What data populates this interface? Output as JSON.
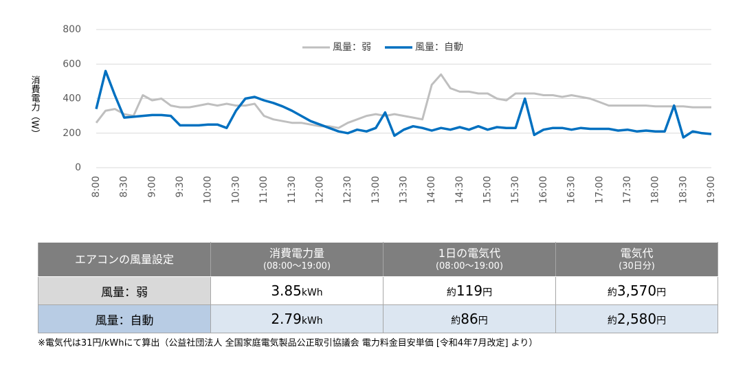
{
  "chart_data": {
    "type": "line",
    "y_label": "消費電力（W）",
    "categories": [
      "8:00",
      null,
      null,
      "8:30",
      null,
      null,
      "9:00",
      null,
      null,
      "9:30",
      null,
      null,
      "10:00",
      null,
      null,
      "10:30",
      null,
      null,
      "11:00",
      null,
      null,
      "11:30",
      null,
      null,
      "12:00",
      null,
      null,
      "12:30",
      null,
      null,
      "13:00",
      null,
      null,
      "13:30",
      null,
      null,
      "14:00",
      null,
      null,
      "14:30",
      null,
      null,
      "15:00",
      null,
      null,
      "15:30",
      null,
      null,
      "16:00",
      null,
      null,
      "16:30",
      null,
      null,
      "17:00",
      null,
      null,
      "17:30",
      null,
      null,
      "18:00",
      null,
      null,
      "18:30",
      null,
      null,
      "19:00"
    ],
    "series": [
      {
        "name": "風量：弱",
        "color": "#bfbfbf",
        "values": [
          260,
          330,
          340,
          310,
          300,
          420,
          390,
          400,
          360,
          350,
          350,
          360,
          370,
          360,
          370,
          360,
          360,
          370,
          300,
          280,
          270,
          260,
          260,
          250,
          240,
          240,
          230,
          260,
          280,
          300,
          310,
          300,
          310,
          300,
          290,
          280,
          480,
          540,
          460,
          440,
          440,
          430,
          430,
          400,
          390,
          430,
          430,
          430,
          420,
          420,
          410,
          420,
          410,
          400,
          380,
          360,
          360,
          360,
          360,
          360,
          355,
          355,
          355,
          355,
          350,
          350,
          350
        ]
      },
      {
        "name": "風量：自動",
        "color": "#0070c0",
        "values": [
          340,
          560,
          420,
          290,
          295,
          300,
          305,
          305,
          300,
          245,
          245,
          245,
          250,
          250,
          230,
          330,
          400,
          410,
          390,
          375,
          355,
          330,
          300,
          270,
          250,
          230,
          210,
          200,
          220,
          210,
          230,
          320,
          185,
          220,
          240,
          230,
          215,
          230,
          220,
          235,
          220,
          240,
          220,
          235,
          230,
          230,
          400,
          190,
          220,
          230,
          230,
          220,
          230,
          225,
          225,
          225,
          215,
          220,
          210,
          215,
          210,
          210,
          360,
          175,
          210,
          200,
          195
        ]
      }
    ],
    "ylim": [
      0,
      800
    ],
    "yticks": [
      0,
      200,
      400,
      600,
      800
    ],
    "grid": true,
    "legend": "top"
  },
  "table": {
    "header": [
      {
        "main": "エアコンの風量設定"
      },
      {
        "main": "消費電力量",
        "sub": "(08:00～19:00)"
      },
      {
        "main": "1日の電気代",
        "sub": "(08:00～19:00)"
      },
      {
        "main": "電気代",
        "sub": "(30日分)"
      }
    ],
    "rows": [
      [
        {
          "label": "風量：弱"
        },
        {
          "num": "3.85",
          "unit": "kWh"
        },
        {
          "pre": "約",
          "num": "119",
          "unit": "円"
        },
        {
          "pre": "約",
          "num": "3,570",
          "unit": "円"
        }
      ],
      [
        {
          "label": "風量：自動"
        },
        {
          "num": "2.79",
          "unit": "kWh"
        },
        {
          "pre": "約",
          "num": "86",
          "unit": "円"
        },
        {
          "pre": "約",
          "num": "2,580",
          "unit": "円"
        }
      ]
    ]
  },
  "footnote": "※電気代は31円/kWhにて算出（公益社団法人 全国家庭電気製品公正取引協議会 電力料金目安単価 [令和4年7月改定] より）"
}
